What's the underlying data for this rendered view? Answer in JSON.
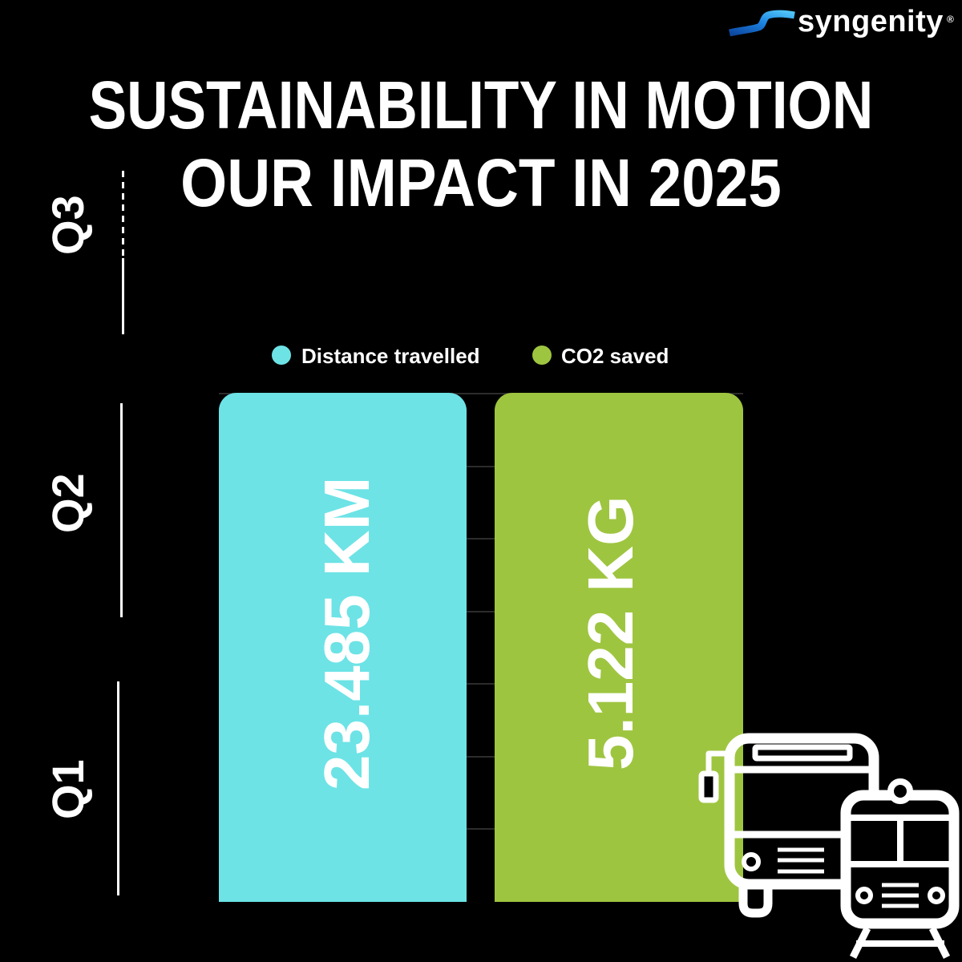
{
  "brand": {
    "name": "syngenity",
    "registered_mark": "®",
    "logo_colors": [
      "#0d47a1",
      "#1e88e5",
      "#4fc3f7"
    ]
  },
  "colors": {
    "background": "#000000",
    "text": "#ffffff",
    "gridline": "#2c2c2c"
  },
  "chart_data": {
    "type": "bar",
    "title": "SUSTAINABILITY IN MOTION",
    "subtitle": "OUR IMPACT IN 2025",
    "yticklabels": [
      "Q1",
      "Q2",
      "Q3"
    ],
    "series": [
      {
        "name": "Distance travelled",
        "value": 23.485,
        "unit": "KM",
        "color": "#6de3e6"
      },
      {
        "name": "CO2 saved",
        "value": 5.122,
        "unit": "KG",
        "color": "#9ec540"
      }
    ],
    "legend": "top-center",
    "grid": true
  },
  "icons": [
    "syngenity-logo-icon",
    "bus-icon",
    "train-icon"
  ]
}
